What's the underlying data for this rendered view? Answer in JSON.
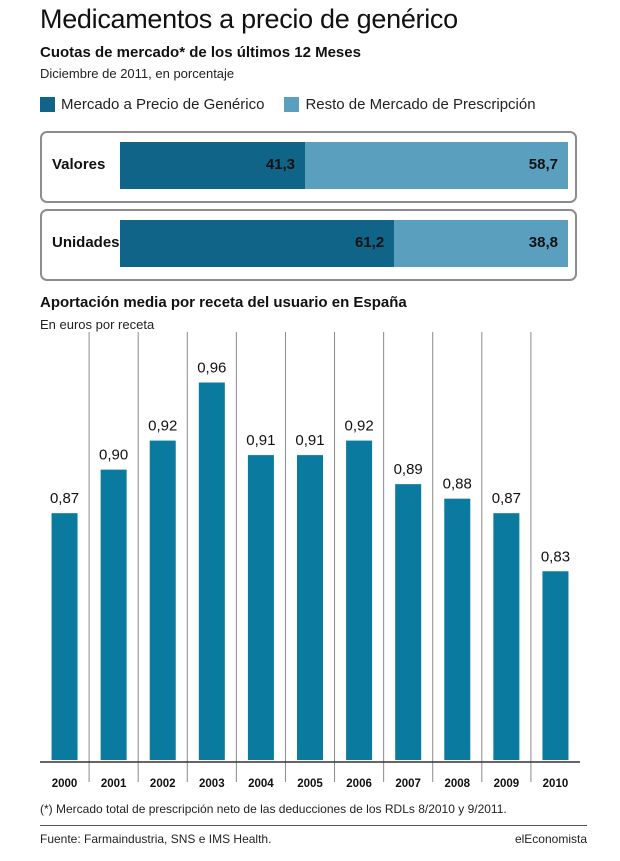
{
  "header": {
    "title": "Medicamentos a precio de genérico",
    "subtitle": "Cuotas de mercado* de los últimos 12 Meses",
    "note": "Diciembre de 2011, en porcentaje"
  },
  "legend": [
    {
      "label": "Mercado a Precio de Genérico",
      "color": "#0f6488"
    },
    {
      "label": "Resto de Mercado de Prescripción",
      "color": "#5b9fbf"
    }
  ],
  "market_share": [
    {
      "label": "Valores",
      "generic": 41.3,
      "generic_label": "41,3",
      "rest": 58.7,
      "rest_label": "58,7"
    },
    {
      "label": "Unidades",
      "generic": 61.2,
      "generic_label": "61,2",
      "rest": 38.8,
      "rest_label": "38,8"
    }
  ],
  "section2": {
    "title": "Aportación media por receta del usuario en España",
    "note": "En euros por receta"
  },
  "chart_data": {
    "type": "bar",
    "categories": [
      "2000",
      "2001",
      "2002",
      "2003",
      "2004",
      "2005",
      "2006",
      "2007",
      "2008",
      "2009",
      "2010"
    ],
    "values": [
      0.87,
      0.9,
      0.92,
      0.96,
      0.91,
      0.91,
      0.92,
      0.89,
      0.88,
      0.87,
      0.83
    ],
    "value_labels": [
      "0,87",
      "0,90",
      "0,92",
      "0,96",
      "0,91",
      "0,91",
      "0,92",
      "0,89",
      "0,88",
      "0,87",
      "0,83"
    ],
    "bar_color": "#0a7a9e",
    "ylim": [
      0.7,
      0.97
    ]
  },
  "footnote": "(*) Mercado total de prescripción neto de las deducciones de los RDLs 8/2010 y 9/2011.",
  "source": "Fuente: Farmaindustria, SNS e IMS Health.",
  "brand": "elEconomista"
}
